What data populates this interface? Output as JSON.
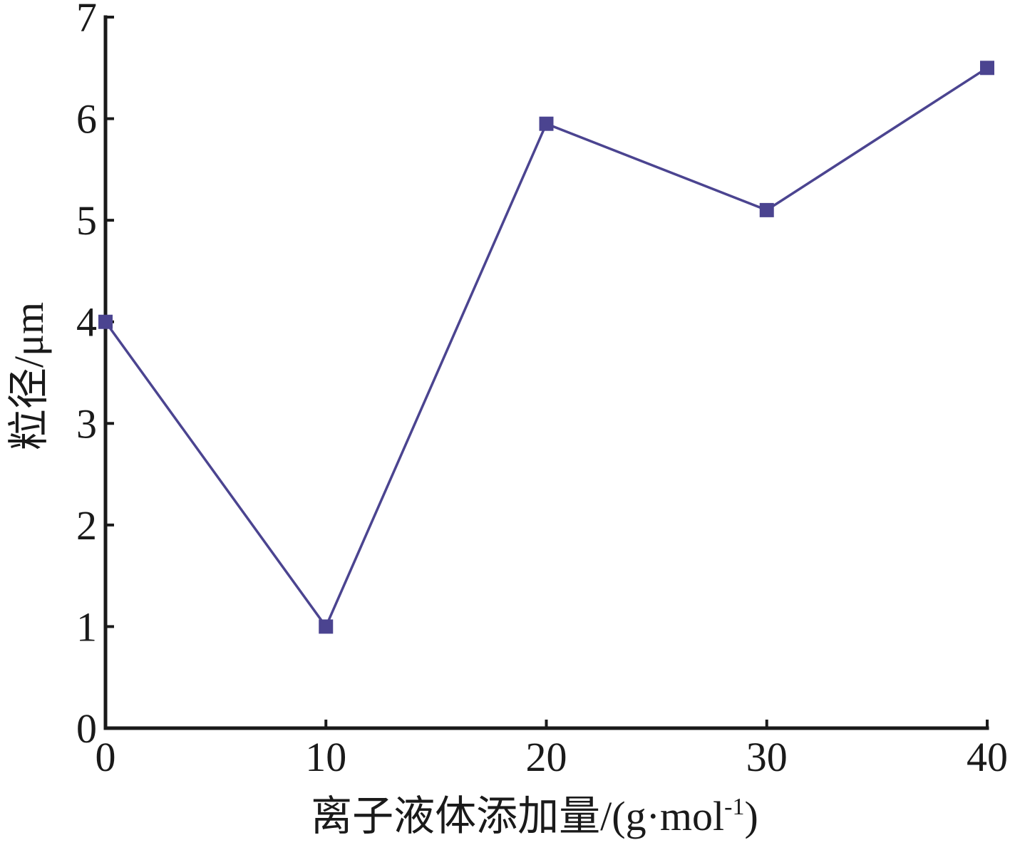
{
  "chart_data": {
    "type": "line",
    "title": "",
    "xlabel": "离子液体添加量/(g·mol",
    "xlabel_superscript": "-1",
    "xlabel_suffix": ")",
    "ylabel": "粒径/μm",
    "x": [
      0,
      10,
      20,
      30,
      40
    ],
    "xlim": [
      0,
      40
    ],
    "ylim": [
      0,
      7
    ],
    "xticks": [
      "0",
      "10",
      "20",
      "30",
      "40"
    ],
    "yticks": [
      "0",
      "1",
      "2",
      "3",
      "4",
      "5",
      "6",
      "7"
    ],
    "series": [
      {
        "values": [
          4.0,
          1.0,
          5.95,
          5.1,
          6.5
        ],
        "color": "#4b4490",
        "marker": "square"
      }
    ],
    "grid": false,
    "legend": "none"
  }
}
